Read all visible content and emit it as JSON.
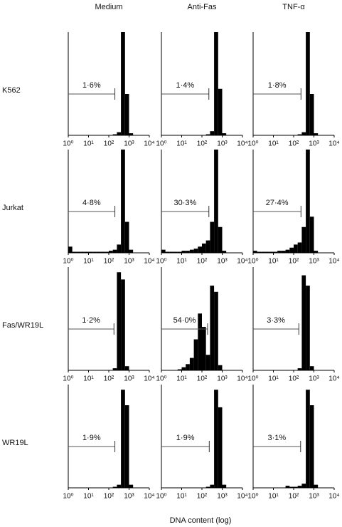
{
  "column_titles": [
    "Medium",
    "Anti-Fas",
    "TNF-α"
  ],
  "row_labels": [
    "K562",
    "Jurkat",
    "Fas/WR19L",
    "WR19L"
  ],
  "xlabel": "DNA content (log)",
  "chart_data": [
    {
      "type": "histogram",
      "log_x": true,
      "xlim": [
        1,
        10000
      ],
      "ylim": [
        0,
        100
      ],
      "color": "#000000",
      "xticks": [
        {
          "value": 1,
          "label": "10⁰"
        },
        {
          "value": 10,
          "label": "10¹"
        },
        {
          "value": 100,
          "label": "10²"
        },
        {
          "value": 1000,
          "label": "10³"
        },
        {
          "value": 10000,
          "label": "10⁴"
        }
      ],
      "bins": [
        1,
        1.58,
        2.51,
        3.98,
        6.31,
        10,
        15.8,
        25.1,
        39.8,
        63.1,
        100,
        158,
        251,
        398,
        631,
        1000,
        1580,
        2510,
        3980,
        6310,
        10000
      ],
      "counts": [
        0,
        0,
        0,
        0,
        0,
        0,
        0,
        0,
        0,
        0,
        0,
        1,
        3,
        100,
        40,
        2,
        0,
        0,
        0,
        0
      ],
      "gate_range": [
        1,
        200
      ],
      "gate_label": "1·6%"
    },
    {
      "type": "histogram",
      "log_x": true,
      "xlim": [
        1,
        10000
      ],
      "ylim": [
        0,
        100
      ],
      "color": "#000000",
      "xticks": [
        {
          "value": 1,
          "label": "10⁰"
        },
        {
          "value": 10,
          "label": "10¹"
        },
        {
          "value": 100,
          "label": "10²"
        },
        {
          "value": 1000,
          "label": "10³"
        },
        {
          "value": 10000,
          "label": "10⁴"
        }
      ],
      "bins": [
        1,
        1.58,
        2.51,
        3.98,
        6.31,
        10,
        15.8,
        25.1,
        39.8,
        63.1,
        100,
        158,
        251,
        398,
        631,
        1000,
        1580,
        2510,
        3980,
        6310,
        10000
      ],
      "counts": [
        0,
        0,
        0,
        0,
        0,
        0,
        0,
        0,
        0,
        0,
        0,
        1,
        4,
        100,
        45,
        2,
        0,
        0,
        0,
        0
      ],
      "gate_range": [
        1,
        220
      ],
      "gate_label": "1·4%"
    },
    {
      "type": "histogram",
      "log_x": true,
      "xlim": [
        1,
        10000
      ],
      "ylim": [
        0,
        100
      ],
      "color": "#000000",
      "xticks": [
        {
          "value": 1,
          "label": "10⁰"
        },
        {
          "value": 10,
          "label": "10¹"
        },
        {
          "value": 100,
          "label": "10²"
        },
        {
          "value": 1000,
          "label": "10³"
        },
        {
          "value": 10000,
          "label": "10⁴"
        }
      ],
      "bins": [
        1,
        1.58,
        2.51,
        3.98,
        6.31,
        10,
        15.8,
        25.1,
        39.8,
        63.1,
        100,
        158,
        251,
        398,
        631,
        1000,
        1580,
        2510,
        3980,
        6310,
        10000
      ],
      "counts": [
        0,
        0,
        0,
        0,
        0,
        0,
        0,
        0,
        0,
        0,
        0,
        1,
        3,
        100,
        40,
        2,
        0,
        0,
        0,
        0
      ],
      "gate_range": [
        1,
        230
      ],
      "gate_label": "1·8%"
    },
    {
      "type": "histogram",
      "log_x": true,
      "xlim": [
        1,
        10000
      ],
      "ylim": [
        0,
        100
      ],
      "color": "#000000",
      "xticks": [
        {
          "value": 1,
          "label": "10⁰"
        },
        {
          "value": 10,
          "label": "10¹"
        },
        {
          "value": 100,
          "label": "10²"
        },
        {
          "value": 1000,
          "label": "10³"
        },
        {
          "value": 10000,
          "label": "10⁴"
        }
      ],
      "bins": [
        1,
        1.58,
        2.51,
        3.98,
        6.31,
        10,
        15.8,
        25.1,
        39.8,
        63.1,
        100,
        158,
        251,
        398,
        631,
        1000,
        1580,
        2510,
        3980,
        6310,
        10000
      ],
      "counts": [
        6,
        1,
        1,
        1,
        1,
        1,
        1,
        1,
        1,
        1,
        2,
        3,
        8,
        100,
        30,
        3,
        0,
        0,
        0,
        0
      ],
      "gate_range": [
        1,
        200
      ],
      "gate_label": "4·8%"
    },
    {
      "type": "histogram",
      "log_x": true,
      "xlim": [
        1,
        10000
      ],
      "ylim": [
        0,
        100
      ],
      "color": "#000000",
      "xticks": [
        {
          "value": 1,
          "label": "10⁰"
        },
        {
          "value": 10,
          "label": "10¹"
        },
        {
          "value": 100,
          "label": "10²"
        },
        {
          "value": 1000,
          "label": "10³"
        },
        {
          "value": 10000,
          "label": "10⁴"
        }
      ],
      "bins": [
        1,
        1.58,
        2.51,
        3.98,
        6.31,
        10,
        15.8,
        25.1,
        39.8,
        63.1,
        100,
        158,
        251,
        398,
        631,
        1000,
        1580,
        2510,
        3980,
        6310,
        10000
      ],
      "counts": [
        3,
        1,
        1,
        1,
        1,
        2,
        2,
        3,
        4,
        6,
        9,
        12,
        30,
        100,
        25,
        2,
        0,
        0,
        0,
        0
      ],
      "gate_range": [
        1,
        220
      ],
      "gate_label": "30·3%"
    },
    {
      "type": "histogram",
      "log_x": true,
      "xlim": [
        1,
        10000
      ],
      "ylim": [
        0,
        100
      ],
      "color": "#000000",
      "xticks": [
        {
          "value": 1,
          "label": "10⁰"
        },
        {
          "value": 10,
          "label": "10¹"
        },
        {
          "value": 100,
          "label": "10²"
        },
        {
          "value": 1000,
          "label": "10³"
        },
        {
          "value": 10000,
          "label": "10⁴"
        }
      ],
      "bins": [
        1,
        1.58,
        2.51,
        3.98,
        6.31,
        10,
        15.8,
        25.1,
        39.8,
        63.1,
        100,
        158,
        251,
        398,
        631,
        1000,
        1580,
        2510,
        3980,
        6310,
        10000
      ],
      "counts": [
        2,
        1,
        1,
        1,
        1,
        1,
        2,
        2,
        3,
        5,
        8,
        10,
        25,
        100,
        35,
        2,
        0,
        0,
        0,
        0
      ],
      "gate_range": [
        1,
        230
      ],
      "gate_label": "27·4%"
    },
    {
      "type": "histogram",
      "log_x": true,
      "xlim": [
        1,
        10000
      ],
      "ylim": [
        0,
        100
      ],
      "color": "#000000",
      "xticks": [
        {
          "value": 1,
          "label": "10⁰"
        },
        {
          "value": 10,
          "label": "10¹"
        },
        {
          "value": 100,
          "label": "10²"
        },
        {
          "value": 1000,
          "label": "10³"
        },
        {
          "value": 10000,
          "label": "10⁴"
        }
      ],
      "bins": [
        1,
        1.58,
        2.51,
        3.98,
        6.31,
        10,
        15.8,
        25.1,
        39.8,
        63.1,
        100,
        158,
        251,
        398,
        631,
        1000,
        1580,
        2510,
        3980,
        6310,
        10000
      ],
      "counts": [
        0,
        0,
        0,
        0,
        0,
        0,
        0,
        0,
        0,
        0,
        0,
        2,
        95,
        88,
        4,
        0,
        0,
        0,
        0,
        0
      ],
      "gate_range": [
        1,
        180
      ],
      "gate_label": "1·2%"
    },
    {
      "type": "histogram",
      "log_x": true,
      "xlim": [
        1,
        10000
      ],
      "ylim": [
        0,
        100
      ],
      "color": "#000000",
      "xticks": [
        {
          "value": 1,
          "label": "10⁰"
        },
        {
          "value": 10,
          "label": "10¹"
        },
        {
          "value": 100,
          "label": "10²"
        },
        {
          "value": 1000,
          "label": "10³"
        },
        {
          "value": 10000,
          "label": "10⁴"
        }
      ],
      "bins": [
        1,
        1.58,
        2.51,
        3.98,
        6.31,
        10,
        15.8,
        25.1,
        39.8,
        63.1,
        100,
        158,
        251,
        398,
        631,
        1000,
        1580,
        2510,
        3980,
        6310,
        10000
      ],
      "counts": [
        0,
        0,
        0,
        0,
        1,
        3,
        6,
        12,
        30,
        55,
        42,
        15,
        82,
        76,
        5,
        0,
        0,
        0,
        0,
        0
      ],
      "gate_range": [
        1,
        190
      ],
      "gate_label": "54·0%"
    },
    {
      "type": "histogram",
      "log_x": true,
      "xlim": [
        1,
        10000
      ],
      "ylim": [
        0,
        100
      ],
      "color": "#000000",
      "xticks": [
        {
          "value": 1,
          "label": "10⁰"
        },
        {
          "value": 10,
          "label": "10¹"
        },
        {
          "value": 100,
          "label": "10²"
        },
        {
          "value": 1000,
          "label": "10³"
        },
        {
          "value": 10000,
          "label": "10⁴"
        }
      ],
      "bins": [
        1,
        1.58,
        2.51,
        3.98,
        6.31,
        10,
        15.8,
        25.1,
        39.8,
        63.1,
        100,
        158,
        251,
        398,
        631,
        1000,
        1580,
        2510,
        3980,
        6310,
        10000
      ],
      "counts": [
        0,
        0,
        0,
        0,
        0,
        0,
        0,
        0,
        0,
        0,
        0,
        2,
        92,
        82,
        4,
        0,
        0,
        0,
        0,
        0
      ],
      "gate_range": [
        1,
        180
      ],
      "gate_label": "3·3%"
    },
    {
      "type": "histogram",
      "log_x": true,
      "xlim": [
        1,
        10000
      ],
      "ylim": [
        0,
        100
      ],
      "color": "#000000",
      "xticks": [
        {
          "value": 1,
          "label": "10⁰"
        },
        {
          "value": 10,
          "label": "10¹"
        },
        {
          "value": 100,
          "label": "10²"
        },
        {
          "value": 1000,
          "label": "10³"
        },
        {
          "value": 10000,
          "label": "10⁴"
        }
      ],
      "bins": [
        1,
        1.58,
        2.51,
        3.98,
        6.31,
        10,
        15.8,
        25.1,
        39.8,
        63.1,
        100,
        158,
        251,
        398,
        631,
        1000,
        1580,
        2510,
        3980,
        6310,
        10000
      ],
      "counts": [
        0,
        0,
        0,
        0,
        0,
        0,
        0,
        0,
        0,
        0,
        0,
        1,
        3,
        95,
        80,
        3,
        0,
        0,
        0,
        0
      ],
      "gate_range": [
        1,
        200
      ],
      "gate_label": "1·9%"
    },
    {
      "type": "histogram",
      "log_x": true,
      "xlim": [
        1,
        10000
      ],
      "ylim": [
        0,
        100
      ],
      "color": "#000000",
      "xticks": [
        {
          "value": 1,
          "label": "10⁰"
        },
        {
          "value": 10,
          "label": "10¹"
        },
        {
          "value": 100,
          "label": "10²"
        },
        {
          "value": 1000,
          "label": "10³"
        },
        {
          "value": 10000,
          "label": "10⁴"
        }
      ],
      "bins": [
        1,
        1.58,
        2.51,
        3.98,
        6.31,
        10,
        15.8,
        25.1,
        39.8,
        63.1,
        100,
        158,
        251,
        398,
        631,
        1000,
        1580,
        2510,
        3980,
        6310,
        10000
      ],
      "counts": [
        0,
        0,
        0,
        0,
        0,
        0,
        0,
        0,
        0,
        0,
        0,
        1,
        3,
        95,
        78,
        3,
        0,
        0,
        0,
        0
      ],
      "gate_range": [
        1,
        230
      ],
      "gate_label": "1·9%"
    },
    {
      "type": "histogram",
      "log_x": true,
      "xlim": [
        1,
        10000
      ],
      "ylim": [
        0,
        100
      ],
      "color": "#000000",
      "xticks": [
        {
          "value": 1,
          "label": "10⁰"
        },
        {
          "value": 10,
          "label": "10¹"
        },
        {
          "value": 100,
          "label": "10²"
        },
        {
          "value": 1000,
          "label": "10³"
        },
        {
          "value": 10000,
          "label": "10⁴"
        }
      ],
      "bins": [
        1,
        1.58,
        2.51,
        3.98,
        6.31,
        10,
        15.8,
        25.1,
        39.8,
        63.1,
        100,
        158,
        251,
        398,
        631,
        1000,
        1580,
        2510,
        3980,
        6310,
        10000
      ],
      "counts": [
        0,
        0,
        0,
        0,
        0,
        0,
        0,
        0,
        2,
        1,
        1,
        2,
        4,
        95,
        80,
        3,
        0,
        0,
        0,
        0
      ],
      "gate_range": [
        1,
        220
      ],
      "gate_label": "3·1%"
    }
  ]
}
